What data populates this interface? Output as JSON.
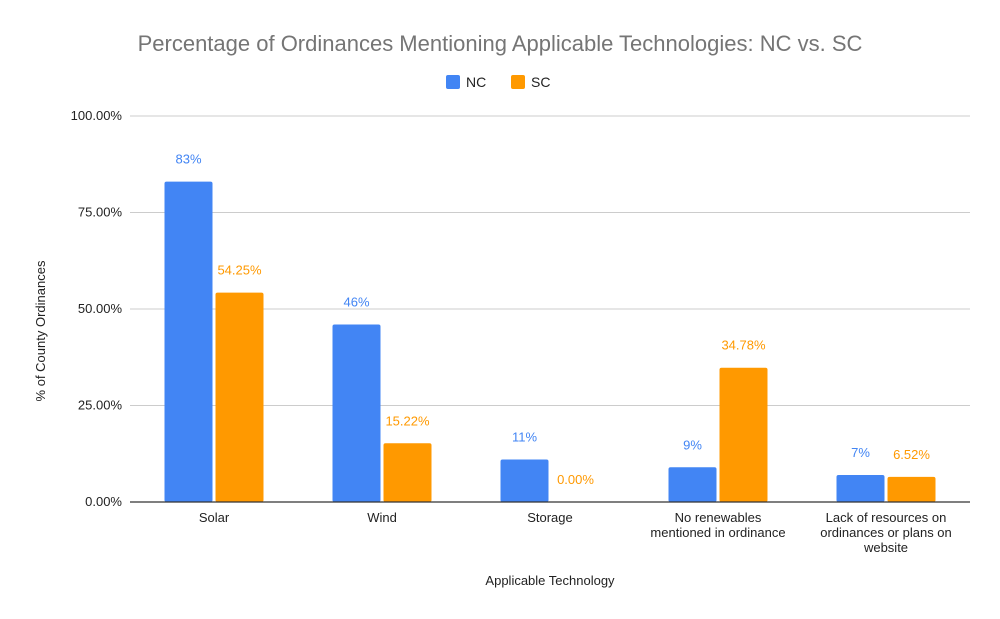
{
  "chart_data": {
    "type": "bar",
    "title": "Percentage of Ordinances Mentioning Applicable Technologies: NC vs. SC",
    "xlabel": "Applicable Technology",
    "ylabel": "% of County Ordinances",
    "ylim": [
      0,
      100
    ],
    "yticks": [
      {
        "value": 0,
        "label": "0.00%"
      },
      {
        "value": 25,
        "label": "25.00%"
      },
      {
        "value": 50,
        "label": "50.00%"
      },
      {
        "value": 75,
        "label": "75.00%"
      },
      {
        "value": 100,
        "label": "100.00%"
      }
    ],
    "grid": true,
    "legend_position": "top",
    "categories": [
      [
        "Solar"
      ],
      [
        "Wind"
      ],
      [
        "Storage"
      ],
      [
        "No renewables",
        "mentioned in ordinance"
      ],
      [
        "Lack of resources on",
        "ordinances or plans on",
        "website"
      ]
    ],
    "series": [
      {
        "name": "NC",
        "color": "#4285F4",
        "values": [
          83,
          46,
          11,
          9,
          7
        ],
        "labels": [
          "83%",
          "46%",
          "11%",
          "9%",
          "7%"
        ]
      },
      {
        "name": "SC",
        "color": "#FF9900",
        "values": [
          54.25,
          15.22,
          0,
          34.78,
          6.52
        ],
        "labels": [
          "54.25%",
          "15.22%",
          "0.00%",
          "34.78%",
          "6.52%"
        ]
      }
    ]
  }
}
